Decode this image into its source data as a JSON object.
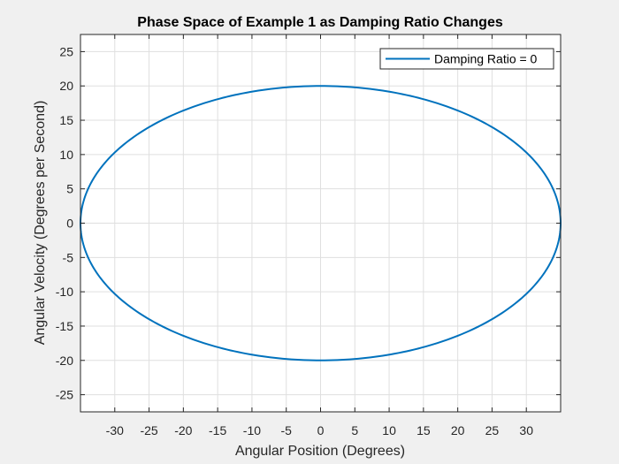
{
  "chart_data": {
    "type": "line",
    "title": "Phase Space of Example 1 as Damping Ratio Changes",
    "xlabel": "Angular Position (Degrees)",
    "ylabel": "Angular Velocity (Degrees per Second)",
    "xlim": [
      -35,
      35
    ],
    "ylim": [
      -27.5,
      27.5
    ],
    "xticks": [
      -30,
      -25,
      -20,
      -15,
      -10,
      -5,
      0,
      5,
      10,
      15,
      20,
      25,
      30
    ],
    "yticks": [
      -25,
      -20,
      -15,
      -10,
      -5,
      0,
      5,
      10,
      15,
      20,
      25
    ],
    "grid": true,
    "legend_location": "top-right",
    "series": [
      {
        "name": "Damping Ratio = 0",
        "color": "#0072BD",
        "shape": "ellipse",
        "center": [
          0,
          0
        ],
        "x_amplitude": 35,
        "y_amplitude": 20
      }
    ]
  }
}
